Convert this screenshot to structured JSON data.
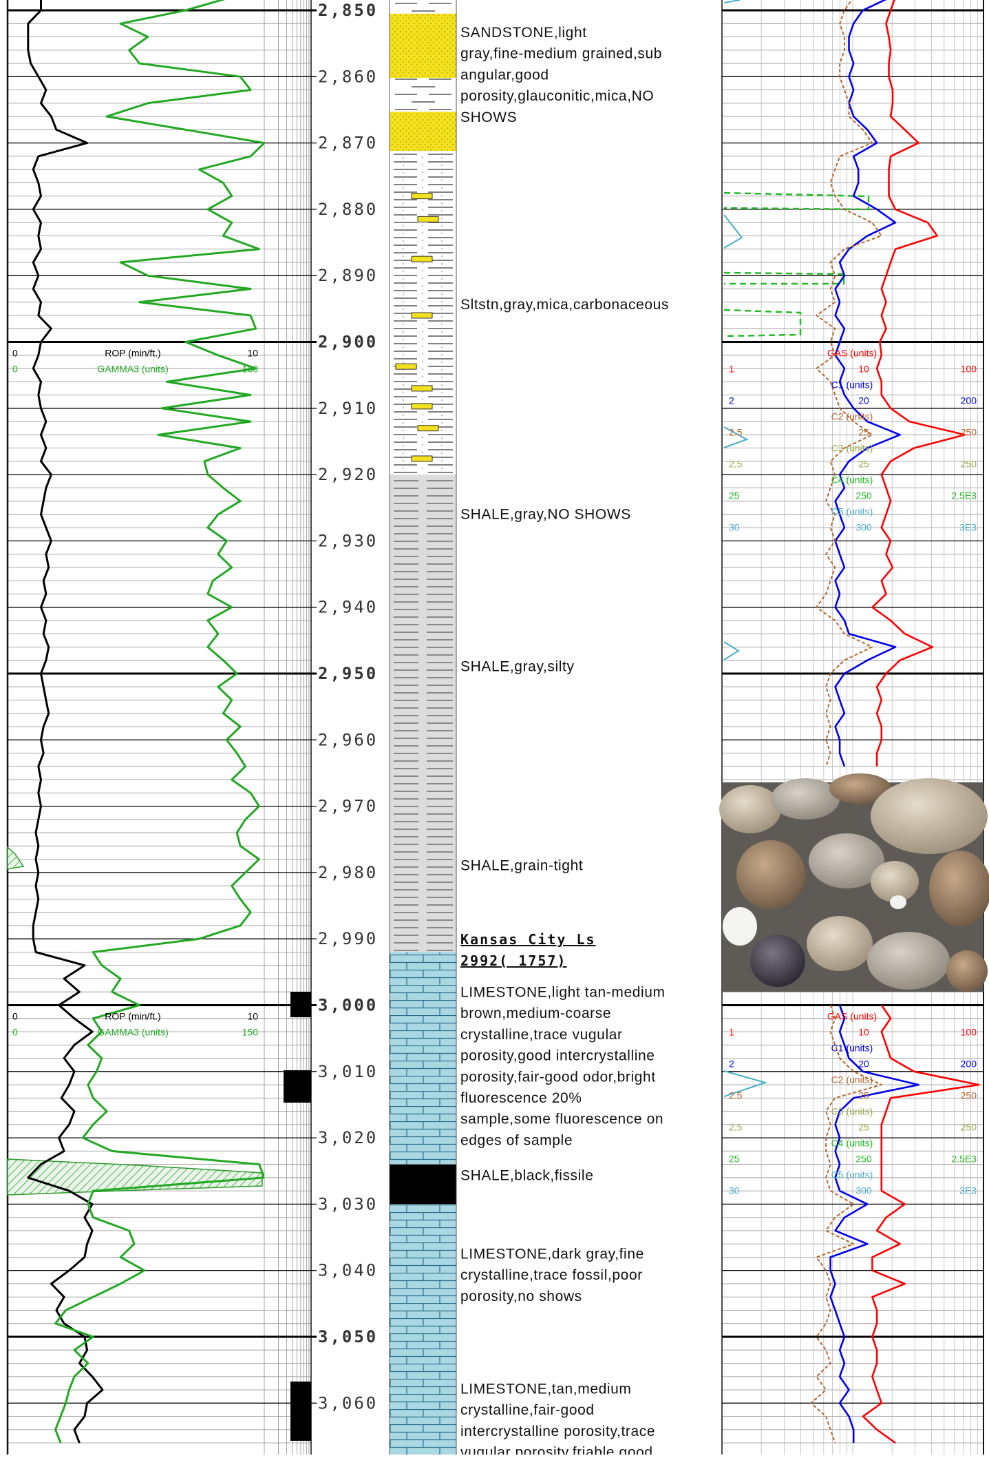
{
  "chart_data": {
    "type": "mudlog",
    "depth_labels": [
      {
        "value": 2850,
        "label": "2,850"
      },
      {
        "value": 2860,
        "label": "2,860"
      },
      {
        "value": 2870,
        "label": "2,870"
      },
      {
        "value": 2880,
        "label": "2,880"
      },
      {
        "value": 2890,
        "label": "2,890"
      },
      {
        "value": 2900,
        "label": "2,900"
      },
      {
        "value": 2910,
        "label": "2,910"
      },
      {
        "value": 2920,
        "label": "2,920"
      },
      {
        "value": 2930,
        "label": "2,930"
      },
      {
        "value": 2940,
        "label": "2,940"
      },
      {
        "value": 2950,
        "label": "2,950"
      },
      {
        "value": 2960,
        "label": "2,960"
      },
      {
        "value": 2970,
        "label": "2,970"
      },
      {
        "value": 2980,
        "label": "2,980"
      },
      {
        "value": 2990,
        "label": "2,990"
      },
      {
        "value": 3000,
        "label": "3,000"
      },
      {
        "value": 3010,
        "label": "3,010"
      },
      {
        "value": 3020,
        "label": "3,020"
      },
      {
        "value": 3030,
        "label": "3,030"
      },
      {
        "value": 3040,
        "label": "3,040"
      },
      {
        "value": 3050,
        "label": "3,050"
      },
      {
        "value": 3060,
        "label": "3,060"
      }
    ],
    "x": [
      2848,
      2850,
      2852,
      2854,
      2856,
      2858,
      2860,
      2862,
      2864,
      2866,
      2868,
      2870,
      2872,
      2874,
      2876,
      2878,
      2880,
      2882,
      2884,
      2886,
      2888,
      2890,
      2892,
      2894,
      2896,
      2898,
      2900,
      2902,
      2904,
      2906,
      2908,
      2910,
      2912,
      2914,
      2916,
      2918,
      2920,
      2922,
      2924,
      2926,
      2928,
      2930,
      2932,
      2934,
      2936,
      2938,
      2940,
      2942,
      2944,
      2946,
      2948,
      2950,
      2952,
      2954,
      2956,
      2958,
      2960,
      2962,
      2964,
      2966,
      2968,
      2970,
      2972,
      2974,
      2976,
      2978,
      2980,
      2982,
      2984,
      2986,
      2988,
      2990,
      2992,
      2994,
      2996,
      2998,
      3000,
      3002,
      3004,
      3006,
      3008,
      3010,
      3012,
      3014,
      3016,
      3018,
      3020,
      3022,
      3024,
      3026,
      3028,
      3030,
      3032,
      3034,
      3036,
      3038,
      3040,
      3042,
      3044,
      3046,
      3048,
      3050,
      3052,
      3054,
      3056,
      3058,
      3060,
      3062,
      3064,
      3066
    ],
    "series": [
      {
        "name": "ROP (min/ft.)",
        "color": "#000000",
        "track": "left",
        "scale": "linear",
        "ticks": [
          0,
          10
        ],
        "values": [
          1.3,
          1.3,
          0.8,
          0.8,
          0.8,
          0.9,
          1.2,
          1.5,
          1.3,
          1.7,
          1.9,
          3.1,
          1.2,
          1.0,
          1.2,
          1.3,
          1.0,
          1.3,
          1.2,
          1.3,
          1.0,
          1.2,
          1.0,
          1.3,
          1.2,
          1.7,
          1.3,
          1.2,
          1.0,
          1.3,
          1.2,
          1.3,
          1.5,
          1.3,
          1.5,
          1.3,
          1.7,
          1.5,
          1.4,
          1.3,
          1.5,
          1.7,
          1.5,
          1.6,
          1.4,
          1.5,
          1.3,
          1.5,
          1.4,
          1.6,
          1.5,
          1.3,
          1.4,
          1.5,
          1.6,
          1.4,
          1.3,
          1.4,
          1.2,
          1.3,
          1.2,
          1.3,
          1.2,
          1.1,
          1.2,
          1.1,
          1.2,
          1.1,
          1.2,
          1.1,
          1.0,
          1.0,
          1.1,
          3.0,
          2.2,
          2.8,
          2.0,
          2.6,
          3.3,
          2.6,
          2.2,
          2.6,
          2.4,
          2.1,
          2.6,
          2.4,
          2.0,
          2.2,
          1.3,
          0.8,
          2.4,
          3.3,
          3.0,
          3.3,
          3.1,
          3.0,
          2.4,
          1.7,
          2.2,
          1.9,
          2.2,
          3.0,
          3.1,
          2.8,
          3.3,
          3.7,
          3.1,
          3.0,
          2.6,
          2.8
        ]
      },
      {
        "name": "GAMMA3 (units)",
        "color": "#22a822",
        "track": "left",
        "scale": "linear",
        "ticks": [
          0,
          150
        ],
        "values": [
          131,
          104,
          66,
          82,
          71,
          77,
          136,
          142,
          82,
          58,
          104,
          150,
          142,
          112,
          126,
          131,
          117,
          131,
          126,
          147,
          66,
          82,
          142,
          77,
          142,
          145,
          104,
          123,
          145,
          93,
          142,
          90,
          142,
          88,
          136,
          115,
          117,
          126,
          136,
          123,
          117,
          128,
          123,
          131,
          120,
          117,
          131,
          117,
          123,
          117,
          126,
          134,
          123,
          131,
          126,
          136,
          128,
          134,
          139,
          131,
          142,
          147,
          139,
          134,
          136,
          147,
          139,
          131,
          136,
          142,
          136,
          112,
          50,
          55,
          66,
          61,
          77,
          50,
          55,
          47,
          55,
          52,
          47,
          50,
          58,
          50,
          44,
          61,
          147,
          150,
          50,
          47,
          50,
          71,
          74,
          66,
          80,
          66,
          50,
          34,
          28,
          50,
          39,
          47,
          39,
          36,
          34,
          31,
          28,
          31
        ]
      },
      {
        "name": "GAS (units)",
        "color": "#ff0000",
        "track": "right",
        "scale": "log",
        "ticks": [
          1,
          10,
          100
        ],
        "values": [
          21.2,
          19.5,
          18.0,
          18.9,
          19.5,
          18.9,
          18.9,
          20.2,
          20.2,
          19.5,
          25,
          31.9,
          19.5,
          18.9,
          18.9,
          18.9,
          21.2,
          37.5,
          44.2,
          21.2,
          19.5,
          18.0,
          16.6,
          18.0,
          16.6,
          18.0,
          16.1,
          16.6,
          15.3,
          16.6,
          16.6,
          19.5,
          27.1,
          72.1,
          29.4,
          19.5,
          16.6,
          18.0,
          19.5,
          18.0,
          16.6,
          19.5,
          18.0,
          20.2,
          16.6,
          18.0,
          14.1,
          19.5,
          25,
          40.7,
          23,
          18.0,
          15.3,
          16.6,
          15.3,
          16.6,
          16.6,
          15.3,
          15.3,
          null,
          null,
          null,
          null,
          null,
          null,
          null,
          null,
          null,
          null,
          null,
          null,
          null,
          null,
          null,
          null,
          null,
          16.6,
          19.5,
          16.6,
          18.0,
          19.5,
          29.4,
          92.2,
          19.5,
          18.0,
          16.6,
          16.6,
          16.6,
          16.6,
          16.6,
          16.6,
          25,
          18.0,
          15.3,
          23,
          14.1,
          14.1,
          25,
          14.1,
          15.3,
          15.3,
          14.1,
          15.3,
          15.3,
          14.1,
          15.3,
          16.6,
          12.0,
          15.3,
          21.2
        ]
      },
      {
        "name": "C1 (units)",
        "color": "#0000ee",
        "track": "right",
        "scale": "log",
        "ticks": [
          2,
          20,
          200
        ],
        "values": [
          39.1,
          23.9,
          20.3,
          18.7,
          18.7,
          20.3,
          18.7,
          20.3,
          18.7,
          20.3,
          25.9,
          30.6,
          20.3,
          22.1,
          22.1,
          20.3,
          30.6,
          42.4,
          25.9,
          18.7,
          15.9,
          17.3,
          14.7,
          15.9,
          14.7,
          17.3,
          15.9,
          14.7,
          17.3,
          15.9,
          17.3,
          20.3,
          25.9,
          46.0,
          25.9,
          18.7,
          15.9,
          17.3,
          14.7,
          15.9,
          17.3,
          14.7,
          15.9,
          17.3,
          14.7,
          15.9,
          14.7,
          17.3,
          18.7,
          42.4,
          25.9,
          17.3,
          14.7,
          15.9,
          17.3,
          14.7,
          15.9,
          15.9,
          17.3,
          null,
          null,
          null,
          null,
          null,
          null,
          null,
          null,
          null,
          null,
          null,
          null,
          null,
          null,
          null,
          null,
          null,
          15.9,
          17.3,
          15.9,
          17.3,
          18.7,
          23.9,
          63.8,
          20.3,
          15.9,
          14.7,
          15.9,
          14.7,
          15.9,
          14.7,
          15.9,
          25.9,
          17.3,
          14.7,
          25.9,
          13.5,
          13.5,
          14.7,
          13.5,
          14.7,
          15.9,
          17.3,
          15.9,
          17.3,
          15.9,
          18.7,
          15.9,
          18.7,
          20.3,
          20.3
        ]
      },
      {
        "name": "C2 (units)",
        "color": "#b5652d",
        "track": "right",
        "scale": "log",
        "dashed": true,
        "ticks": [
          2.5,
          25,
          250
        ],
        "values": [
          25.4,
          21.6,
          19.9,
          21.6,
          21.6,
          19.9,
          19.9,
          21.6,
          23.4,
          23.4,
          29.9,
          35.2,
          19.9,
          18.3,
          16.9,
          18.3,
          21.6,
          35.2,
          41.4,
          21.6,
          16.9,
          18.3,
          16.9,
          18.3,
          13.2,
          18.3,
          16.9,
          18.3,
          13.2,
          16.9,
          18.3,
          19.9,
          25.4,
          35.2,
          21.6,
          16.9,
          18.3,
          16.9,
          15.6,
          18.3,
          16.9,
          18.3,
          15.6,
          18.3,
          16.9,
          15.6,
          13.2,
          18.3,
          21.6,
          35.2,
          21.6,
          16.9,
          15.6,
          16.9,
          15.6,
          16.9,
          15.6,
          16.9,
          15.6,
          null,
          null,
          null,
          null,
          null,
          null,
          null,
          null,
          null,
          null,
          null,
          null,
          null,
          null,
          null,
          null,
          null,
          16.9,
          18.3,
          16.9,
          18.3,
          19.9,
          25.4,
          41.4,
          18.3,
          15.6,
          16.9,
          15.6,
          15.6,
          16.9,
          15.6,
          16.9,
          25.4,
          18.3,
          15.6,
          25.4,
          13.2,
          15.6,
          16.9,
          15.6,
          16.9,
          15.6,
          13.2,
          15.6,
          16.9,
          13.2,
          15.6,
          12.0,
          15.6,
          16.9,
          18.3
        ]
      },
      {
        "name": "C3 (units)",
        "color": "#9aab4c",
        "track": "right",
        "scale": "log",
        "ticks": [
          2.5,
          25,
          250
        ]
      },
      {
        "name": "C4 (units)",
        "color": "#22bb22",
        "track": "right",
        "scale": "log",
        "ticks": [
          25,
          250,
          {
            "value": 2500,
            "label": "2.5E3"
          }
        ]
      },
      {
        "name": "C5 (units)",
        "color": "#4aaec8",
        "track": "right",
        "scale": "log",
        "ticks": [
          30,
          300,
          {
            "value": 3000,
            "label": "3E3"
          }
        ]
      }
    ],
    "descriptions": [
      {
        "lines": [
          "SANDSTONE,light",
          "gray,fine-medium grained,sub",
          "angular,good",
          "porosity,glauconitic,mica,NO",
          "SHOWS"
        ]
      },
      {
        "lines": [
          "Sltstn,gray,mica,carbonaceous"
        ]
      },
      {
        "lines": [
          "SHALE,gray,NO SHOWS"
        ]
      },
      {
        "lines": [
          "SHALE,gray,silty"
        ]
      },
      {
        "lines": [
          "SHALE,grain-tight"
        ]
      },
      {
        "lines": [
          "LIMESTONE,light tan-medium",
          "brown,medium-coarse",
          "crystalline,trace vugular",
          "porosity,good intercrystalline",
          "porosity,fair-good odor,bright",
          "fluorescence 20%",
          "sample,some fluorescence on",
          "edges of sample"
        ]
      },
      {
        "lines": [
          "SHALE,black,fissile"
        ]
      },
      {
        "lines": [
          "LIMESTONE,dark gray,fine",
          "crystalline,trace fossil,poor",
          "porosity,no shows"
        ]
      },
      {
        "lines": [
          "LIMESTONE,tan,medium",
          "crystalline,fair-good",
          "intercrystalline porosity,trace",
          "vugular porosity,friable,good"
        ]
      }
    ],
    "formation": {
      "lines": [
        "Kansas City Ls",
        "2992( 1757)"
      ]
    }
  }
}
